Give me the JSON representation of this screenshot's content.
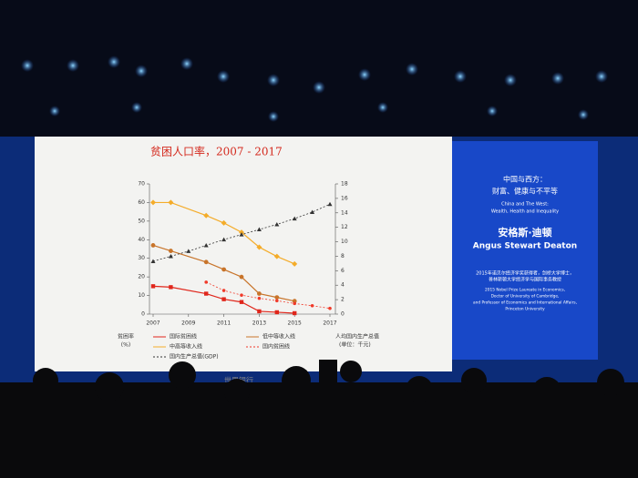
{
  "chart_data": {
    "type": "line",
    "title": "贫困人口率，2007 - 2017",
    "y_label_lines": [
      "贫困率",
      "(%)"
    ],
    "y2_label_lines": [
      "人均国内生产总值",
      "(单位：千元)"
    ],
    "source": "世界银行",
    "xlim": [
      2007,
      2017
    ],
    "xticks": [
      2007,
      2009,
      2011,
      2013,
      2015,
      2017
    ],
    "ylim": [
      0,
      70
    ],
    "yticks": [
      0,
      10,
      20,
      30,
      40,
      50,
      60,
      70
    ],
    "y2lim": [
      0,
      18
    ],
    "y2ticks": [
      0,
      2,
      4,
      6,
      8,
      10,
      12,
      14,
      16,
      18
    ],
    "series": [
      {
        "name": "国际贫困线",
        "color": "#e0261b",
        "marker": "square",
        "x": [
          2007,
          2008,
          2010,
          2011,
          2012,
          2013,
          2014,
          2015
        ],
        "values": [
          15,
          14.5,
          11,
          8,
          6.5,
          1.5,
          1,
          0.5
        ]
      },
      {
        "name": "低中等收入线",
        "color": "#c8742a",
        "marker": "circle",
        "x": [
          2007,
          2008,
          2010,
          2011,
          2012,
          2013,
          2014,
          2015
        ],
        "values": [
          37,
          34,
          28,
          24,
          20,
          11,
          9,
          7
        ]
      },
      {
        "name": "中高等收入线",
        "color": "#f4ac2a",
        "marker": "diamond",
        "x": [
          2007,
          2008,
          2010,
          2011,
          2012,
          2013,
          2014,
          2015
        ],
        "values": [
          60,
          60,
          53,
          49,
          44,
          36,
          31,
          27
        ]
      },
      {
        "name": "国内贫困线",
        "color": "#f03a2a",
        "marker": "dot",
        "dashed": true,
        "x": [
          2010,
          2011,
          2012,
          2013,
          2014,
          2015,
          2016,
          2017
        ],
        "values": [
          17.2,
          12.7,
          10.2,
          8.5,
          7.2,
          5.7,
          4.5,
          3.1
        ]
      },
      {
        "name": "国内生产总值(GDP)",
        "color": "#333333",
        "marker": "triangle",
        "dashed": true,
        "axis": "y2",
        "x": [
          2007,
          2008,
          2009,
          2010,
          2011,
          2012,
          2013,
          2014,
          2015,
          2016,
          2017
        ],
        "values": [
          7.3,
          8.0,
          8.7,
          9.5,
          10.3,
          11.0,
          11.7,
          12.4,
          13.2,
          14.1,
          15.2
        ]
      }
    ]
  },
  "panel": {
    "title_cn_1": "中国与西方：",
    "title_cn_2": "财富、健康与不平等",
    "title_en_1": "China and The West:",
    "title_en_2": "Wealth, Health and Inequality",
    "speaker_cn": "安格斯·迪顿",
    "speaker_en": "Angus Stewart Deaton",
    "bio": [
      "2015年诺贝尔经济学奖获得者，剑桥大学博士，",
      "普林斯顿大学经济学与国际事务教授",
      "2015 Nobel Prize Laureate in Economics,",
      "Doctor of University of Cambridge,",
      "and Professor of Economics and International Affairs,",
      "Princeton University"
    ]
  }
}
